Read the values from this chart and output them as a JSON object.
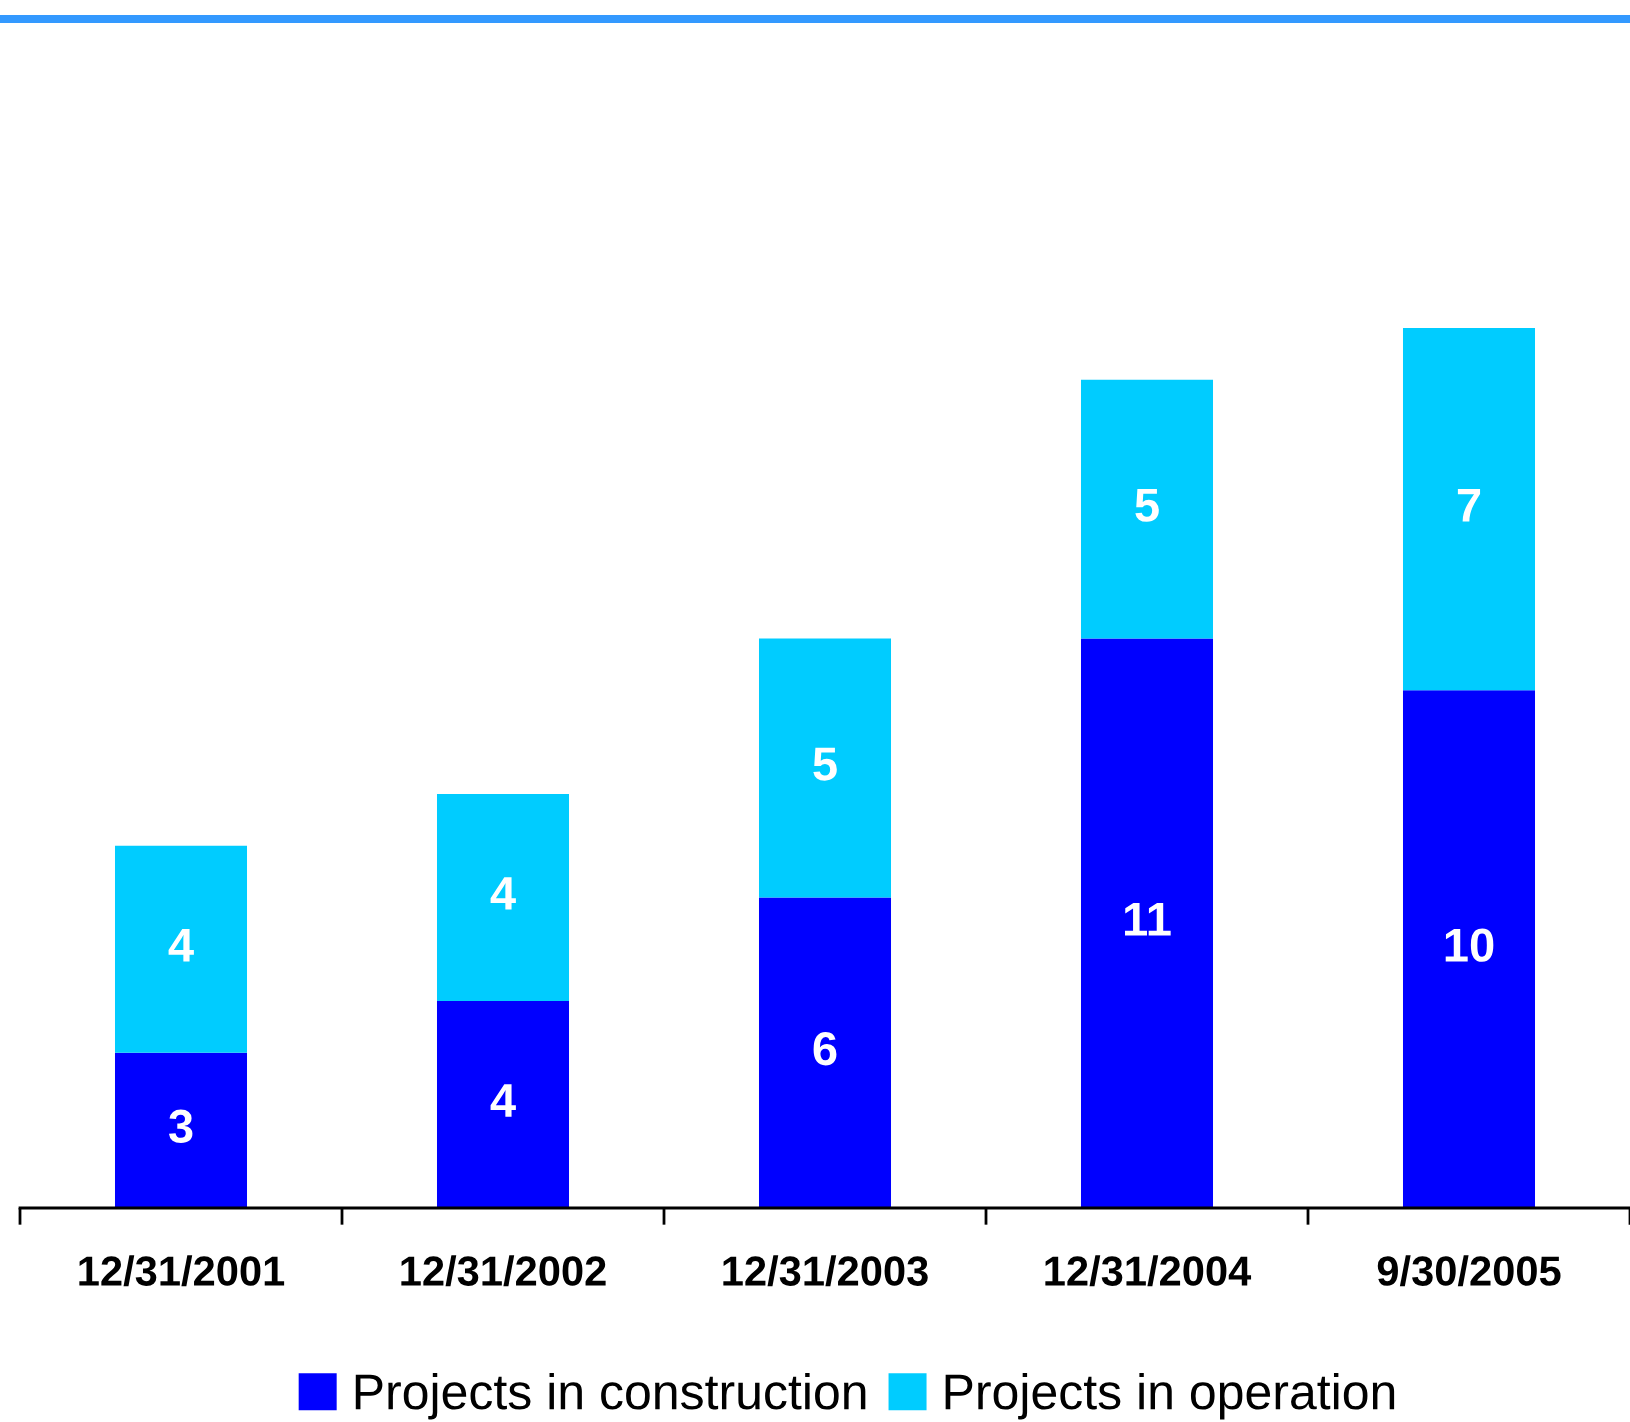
{
  "chart_data": {
    "type": "bar",
    "stacked": true,
    "categories": [
      "12/31/2001",
      "12/31/2002",
      "12/31/2003",
      "12/31/2004",
      "9/30/2005"
    ],
    "series": [
      {
        "name": "Projects in construction",
        "color": "#0000ff",
        "values": [
          3,
          4,
          6,
          11,
          10
        ]
      },
      {
        "name": "Projects in operation",
        "color": "#00ccff",
        "values": [
          4,
          4,
          5,
          5,
          7
        ]
      }
    ],
    "data_labels": true,
    "legend": "bottom",
    "grid": false,
    "tick_labels": "x"
  }
}
